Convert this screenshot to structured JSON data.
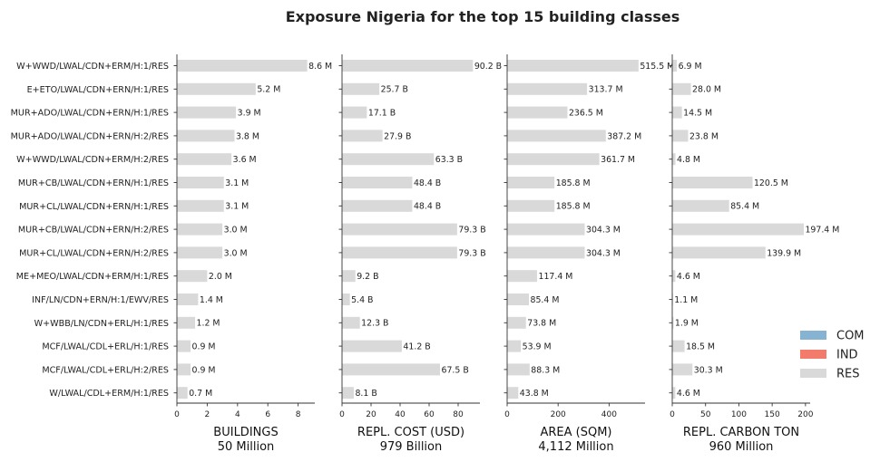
{
  "chart_data": {
    "type": "bar",
    "orientation": "horizontal",
    "title": "Exposure Nigeria for the top 15 building classes",
    "categories": [
      "W+WWD/LWAL/CDN+ERM/H:1/RES",
      "E+ETO/LWAL/CDN+ERN/H:1/RES",
      "MUR+ADO/LWAL/CDN+ERN/H:1/RES",
      "MUR+ADO/LWAL/CDN+ERN/H:2/RES",
      "W+WWD/LWAL/CDN+ERM/H:2/RES",
      "MUR+CB/LWAL/CDN+ERN/H:1/RES",
      "MUR+CL/LWAL/CDN+ERN/H:1/RES",
      "MUR+CB/LWAL/CDN+ERN/H:2/RES",
      "MUR+CL/LWAL/CDN+ERN/H:2/RES",
      "ME+MEO/LWAL/CDN+ERM/H:1/RES",
      "INF/LN/CDN+ERN/H:1/EWV/RES",
      "W+WBB/LN/CDN+ERL/H:1/RES",
      "MCF/LWAL/CDL+ERL/H:1/RES",
      "MCF/LWAL/CDL+ERL/H:2/RES",
      "W/LWAL/CDL+ERM/H:1/RES"
    ],
    "panels": [
      {
        "xlabel": "BUILDINGS",
        "total": "50 Million",
        "xlim": [
          0,
          9.1
        ],
        "ticks": [
          0,
          2,
          4,
          6,
          8
        ],
        "values": [
          8.6,
          5.2,
          3.9,
          3.8,
          3.6,
          3.1,
          3.1,
          3.0,
          3.0,
          2.0,
          1.4,
          1.2,
          0.9,
          0.9,
          0.7
        ],
        "labels": [
          "8.6 M",
          "5.2 M",
          "3.9 M",
          "3.8 M",
          "3.6 M",
          "3.1 M",
          "3.1 M",
          "3.0 M",
          "3.0 M",
          "2.0 M",
          "1.4 M",
          "1.2 M",
          "0.9 M",
          "0.9 M",
          "0.7 M"
        ]
      },
      {
        "xlabel": "REPL. COST (USD)",
        "total": "979 Billion",
        "xlim": [
          0,
          95
        ],
        "ticks": [
          0,
          20,
          40,
          60,
          80
        ],
        "values": [
          90.2,
          25.7,
          17.1,
          27.9,
          63.3,
          48.4,
          48.4,
          79.3,
          79.3,
          9.2,
          5.4,
          12.3,
          41.2,
          67.5,
          8.1
        ],
        "labels": [
          "90.2 B",
          "25.7 B",
          "17.1 B",
          "27.9 B",
          "63.3 B",
          "48.4 B",
          "48.4 B",
          "79.3 B",
          "79.3 B",
          "9.2 B",
          "5.4 B",
          "12.3 B",
          "41.2 B",
          "67.5 B",
          "8.1 B"
        ]
      },
      {
        "xlabel": "AREA (SQM)",
        "total": "4,112 Million",
        "xlim": [
          0,
          541
        ],
        "ticks": [
          0,
          200,
          400
        ],
        "values": [
          515.5,
          313.7,
          236.5,
          387.2,
          361.7,
          185.8,
          185.8,
          304.3,
          304.3,
          117.4,
          85.4,
          73.8,
          53.9,
          88.3,
          43.8
        ],
        "labels": [
          "515.5 M",
          "313.7 M",
          "236.5 M",
          "387.2 M",
          "361.7 M",
          "185.8 M",
          "185.8 M",
          "304.3 M",
          "304.3 M",
          "117.4 M",
          "85.4 M",
          "73.8 M",
          "53.9 M",
          "88.3 M",
          "43.8 M"
        ]
      },
      {
        "xlabel": "REPL. CARBON TON",
        "total": "960 Million",
        "xlim": [
          0,
          207
        ],
        "ticks": [
          0,
          50,
          100,
          150,
          200
        ],
        "values": [
          6.9,
          28.0,
          14.5,
          23.8,
          4.8,
          120.5,
          85.4,
          197.4,
          139.9,
          4.6,
          1.1,
          1.9,
          18.5,
          30.3,
          4.6
        ],
        "labels": [
          "6.9 M",
          "28.0 M",
          "14.5 M",
          "23.8 M",
          "4.8 M",
          "120.5 M",
          "85.4 M",
          "197.4 M",
          "139.9 M",
          "4.6 M",
          "1.1 M",
          "1.9 M",
          "18.5 M",
          "30.3 M",
          "4.6 M"
        ]
      }
    ],
    "legend": {
      "placement": "right",
      "entries": [
        {
          "name": "COM",
          "color": "#86b3d1"
        },
        {
          "name": "IND",
          "color": "#f27b6c"
        },
        {
          "name": "RES",
          "color": "#d9d9d9"
        }
      ]
    },
    "bar_color": "#d9d9d9",
    "grid": false
  }
}
